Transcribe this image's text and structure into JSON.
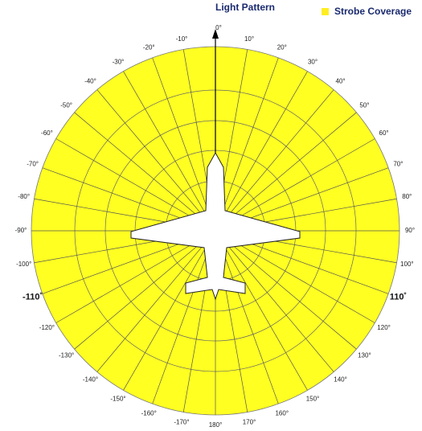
{
  "header": {
    "title": "Light Pattern",
    "legend": "Strobe Coverage"
  },
  "angle_labels": [
    "0°",
    "10°",
    "20°",
    "30°",
    "40°",
    "50°",
    "60°",
    "70°",
    "80°",
    "90°",
    "100°",
    "110˚",
    "120°",
    "130°",
    "140°",
    "150°",
    "160°",
    "170°",
    "180°",
    "-170°",
    "-160°",
    "-150°",
    "-140°",
    "-130°",
    "-120°",
    "-110˚",
    "-100°",
    "-90°",
    "-80°",
    "-70°",
    "-60°",
    "-50°",
    "-40°",
    "-30°",
    "-20°",
    "-10°"
  ]
}
